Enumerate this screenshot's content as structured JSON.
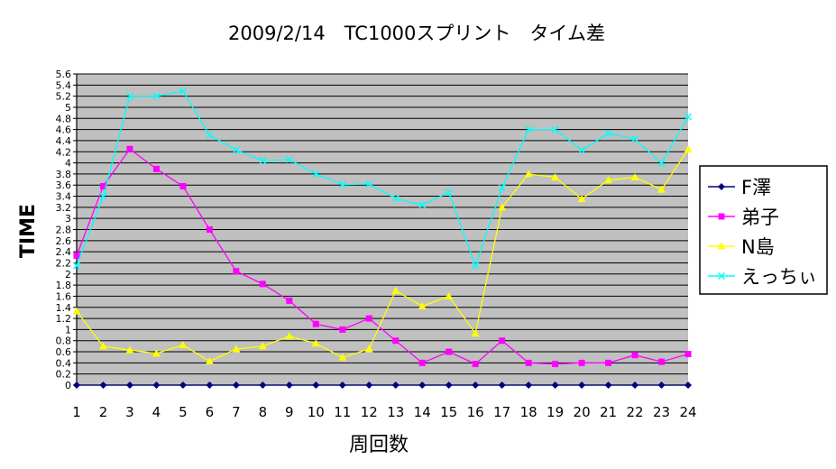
{
  "chart_data": {
    "type": "line",
    "title": "2009/2/14　TC1000スプリント　タイム差",
    "xlabel": "周回数",
    "ylabel": "TIME",
    "ylim": [
      0,
      5.6
    ],
    "ytick_step": 0.2,
    "yticks": [
      "0",
      "0.2",
      "0.4",
      "0.6",
      "0.8",
      "1",
      "1.2",
      "1.4",
      "1.6",
      "1.8",
      "2",
      "2.2",
      "2.4",
      "2.6",
      "2.8",
      "3",
      "3.2",
      "3.4",
      "3.6",
      "3.8",
      "4",
      "4.2",
      "4.4",
      "4.6",
      "4.8",
      "5",
      "5.2",
      "5.4",
      "5.6"
    ],
    "categories": [
      "1",
      "2",
      "3",
      "4",
      "5",
      "6",
      "7",
      "8",
      "9",
      "10",
      "11",
      "12",
      "13",
      "14",
      "15",
      "16",
      "17",
      "18",
      "19",
      "20",
      "21",
      "22",
      "23",
      "24"
    ],
    "grid": true,
    "legend_position": "right",
    "plot_background": "#c0c0c0",
    "series": [
      {
        "name": "F澤",
        "color": "#000080",
        "marker": "diamond",
        "values": [
          0,
          0,
          0,
          0,
          0,
          0,
          0,
          0,
          0,
          0,
          0,
          0,
          0,
          0,
          0,
          0,
          0,
          0,
          0,
          0,
          0,
          0,
          0,
          0
        ]
      },
      {
        "name": "弟子",
        "color": "#ff00ff",
        "marker": "square",
        "values": [
          2.33,
          3.58,
          4.25,
          3.89,
          3.58,
          2.8,
          2.05,
          1.82,
          1.52,
          1.1,
          1,
          1.2,
          0.8,
          0.4,
          0.6,
          0.38,
          0.8,
          0.4,
          0.38,
          0.4,
          0.4,
          0.54,
          0.42,
          0.56
        ]
      },
      {
        "name": "N島",
        "color": "#ffff00",
        "marker": "triangle",
        "values": [
          1.33,
          0.7,
          0.63,
          0.57,
          0.72,
          0.43,
          0.65,
          0.7,
          0.88,
          0.75,
          0.5,
          0.65,
          1.7,
          1.42,
          1.6,
          0.93,
          3.2,
          3.8,
          3.74,
          3.35,
          3.69,
          3.74,
          3.52,
          4.24
        ]
      },
      {
        "name": "えっちぃ",
        "color": "#00ffff",
        "marker": "x",
        "values": [
          2.15,
          3.4,
          5.2,
          5.2,
          5.29,
          4.5,
          4.23,
          4.04,
          4.06,
          3.8,
          3.61,
          3.62,
          3.36,
          3.24,
          3.47,
          2.15,
          3.55,
          4.6,
          4.6,
          4.23,
          4.53,
          4.43,
          3.99,
          4.83
        ]
      }
    ]
  }
}
